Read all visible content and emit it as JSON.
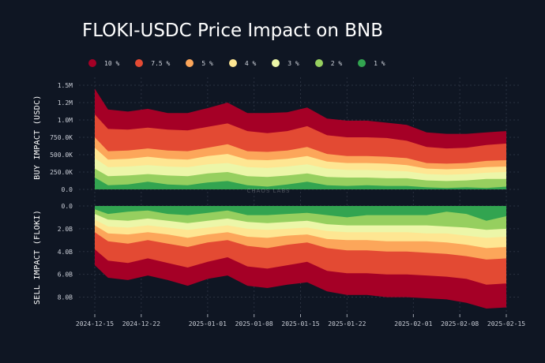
{
  "chart_data": {
    "type": "area",
    "title": "FLOKI-USDC Price Impact on BNB",
    "legend_position": "top",
    "watermark": "CHAOS LABS",
    "series": [
      {
        "name": "10 %",
        "color": "#a50026"
      },
      {
        "name": "7.5 %",
        "color": "#e34a33"
      },
      {
        "name": "5 %",
        "color": "#fca65a"
      },
      {
        "name": "4 %",
        "color": "#fee692"
      },
      {
        "name": "3 %",
        "color": "#ecf6a8"
      },
      {
        "name": "2 %",
        "color": "#96cf5f"
      },
      {
        "name": "1 %",
        "color": "#32a450"
      }
    ],
    "x": [
      "2024-12-15",
      "2024-12-17",
      "2024-12-20",
      "2024-12-23",
      "2024-12-26",
      "2024-12-29",
      "2025-01-01",
      "2025-01-04",
      "2025-01-07",
      "2025-01-10",
      "2025-01-13",
      "2025-01-16",
      "2025-01-19",
      "2025-01-22",
      "2025-01-25",
      "2025-01-28",
      "2025-01-31",
      "2025-02-03",
      "2025-02-06",
      "2025-02-09",
      "2025-02-12",
      "2025-02-15"
    ],
    "x_ticks": [
      "2024-12-15",
      "2024-12-22",
      "2025-01-01",
      "2025-01-08",
      "2025-01-15",
      "2025-01-22",
      "2025-02-01",
      "2025-02-08",
      "2025-02-15"
    ],
    "buy_panel": {
      "ylabel": "BUY IMPACT (USDC)",
      "ylim": [
        0,
        1500000
      ],
      "y_ticks": [
        "0.0",
        "250.0K",
        "500.0K",
        "750.0K",
        "1.0M",
        "1.2M",
        "1.5M"
      ],
      "y_tick_values": [
        0,
        250000,
        500000,
        750000,
        1000000,
        1250000,
        1500000
      ],
      "values": [
        [
          1450000,
          1150000,
          1120000,
          1160000,
          1100000,
          1100000,
          1170000,
          1250000,
          1100000,
          1100000,
          1110000,
          1180000,
          1020000,
          990000,
          990000,
          960000,
          930000,
          820000,
          800000,
          800000,
          820000,
          840000
        ],
        [
          1080000,
          870000,
          860000,
          890000,
          860000,
          850000,
          900000,
          950000,
          840000,
          810000,
          840000,
          910000,
          780000,
          750000,
          750000,
          740000,
          700000,
          610000,
          590000,
          600000,
          640000,
          660000
        ],
        [
          750000,
          550000,
          560000,
          590000,
          560000,
          550000,
          600000,
          650000,
          550000,
          540000,
          560000,
          610000,
          510000,
          480000,
          480000,
          470000,
          450000,
          380000,
          370000,
          380000,
          410000,
          420000
        ],
        [
          600000,
          430000,
          440000,
          470000,
          440000,
          430000,
          480000,
          510000,
          430000,
          420000,
          440000,
          480000,
          400000,
          380000,
          380000,
          370000,
          350000,
          300000,
          290000,
          300000,
          320000,
          330000
        ],
        [
          450000,
          320000,
          330000,
          350000,
          330000,
          320000,
          360000,
          380000,
          320000,
          310000,
          330000,
          360000,
          300000,
          280000,
          280000,
          270000,
          260000,
          220000,
          210000,
          220000,
          240000,
          250000
        ],
        [
          300000,
          190000,
          200000,
          220000,
          200000,
          190000,
          230000,
          250000,
          190000,
          180000,
          200000,
          230000,
          180000,
          170000,
          170000,
          160000,
          160000,
          130000,
          120000,
          130000,
          150000,
          150000
        ],
        [
          170000,
          60000,
          70000,
          110000,
          70000,
          60000,
          100000,
          120000,
          60000,
          40000,
          70000,
          110000,
          60000,
          50000,
          60000,
          50000,
          50000,
          30000,
          20000,
          30000,
          20000,
          40000
        ]
      ]
    },
    "sell_panel": {
      "ylabel": "SELL IMPACT (FLOKI)",
      "ylim": [
        0,
        9000000000
      ],
      "y_ticks": [
        "0.0",
        "2.0B",
        "4.0B",
        "6.0B",
        "8.0B"
      ],
      "y_tick_values": [
        0,
        2000000000,
        4000000000,
        6000000000,
        8000000000
      ],
      "values": [
        [
          5200000000,
          6300000000,
          6500000000,
          6100000000,
          6500000000,
          7000000000,
          6400000000,
          6100000000,
          7000000000,
          7200000000,
          6900000000,
          6700000000,
          7500000000,
          7800000000,
          7800000000,
          8000000000,
          8000000000,
          8100000000,
          8200000000,
          8500000000,
          9000000000,
          8900000000
        ],
        [
          3800000000,
          4800000000,
          5000000000,
          4600000000,
          5000000000,
          5400000000,
          4900000000,
          4500000000,
          5300000000,
          5500000000,
          5200000000,
          4900000000,
          5700000000,
          5900000000,
          5900000000,
          6000000000,
          6000000000,
          6100000000,
          6200000000,
          6400000000,
          6900000000,
          6800000000
        ],
        [
          2300000000,
          3100000000,
          3300000000,
          3000000000,
          3300000000,
          3600000000,
          3200000000,
          3000000000,
          3500000000,
          3700000000,
          3400000000,
          3200000000,
          3700000000,
          3900000000,
          3900000000,
          4000000000,
          4000000000,
          4100000000,
          4200000000,
          4400000000,
          4700000000,
          4600000000
        ],
        [
          1700000000,
          2400000000,
          2500000000,
          2300000000,
          2500000000,
          2800000000,
          2500000000,
          2300000000,
          2700000000,
          2800000000,
          2600000000,
          2500000000,
          2900000000,
          3000000000,
          3000000000,
          3100000000,
          3100000000,
          3100000000,
          3200000000,
          3400000000,
          3700000000,
          3600000000
        ],
        [
          1200000000,
          1800000000,
          1900000000,
          1700000000,
          1900000000,
          2100000000,
          1900000000,
          1700000000,
          2000000000,
          2100000000,
          2000000000,
          1900000000,
          2200000000,
          2300000000,
          2300000000,
          2300000000,
          2300000000,
          2400000000,
          2400000000,
          2600000000,
          2800000000,
          2700000000
        ],
        [
          700000000,
          1200000000,
          1300000000,
          1100000000,
          1300000000,
          1500000000,
          1300000000,
          1100000000,
          1400000000,
          1500000000,
          1400000000,
          1300000000,
          1600000000,
          1700000000,
          1700000000,
          1700000000,
          1700000000,
          1700000000,
          1800000000,
          1900000000,
          2100000000,
          2000000000
        ],
        [
          300000000,
          700000000,
          500000000,
          400000000,
          700000000,
          800000000,
          600000000,
          400000000,
          800000000,
          800000000,
          700000000,
          600000000,
          800000000,
          1000000000,
          800000000,
          800000000,
          800000000,
          800000000,
          500000000,
          700000000,
          1300000000,
          900000000
        ]
      ]
    }
  }
}
